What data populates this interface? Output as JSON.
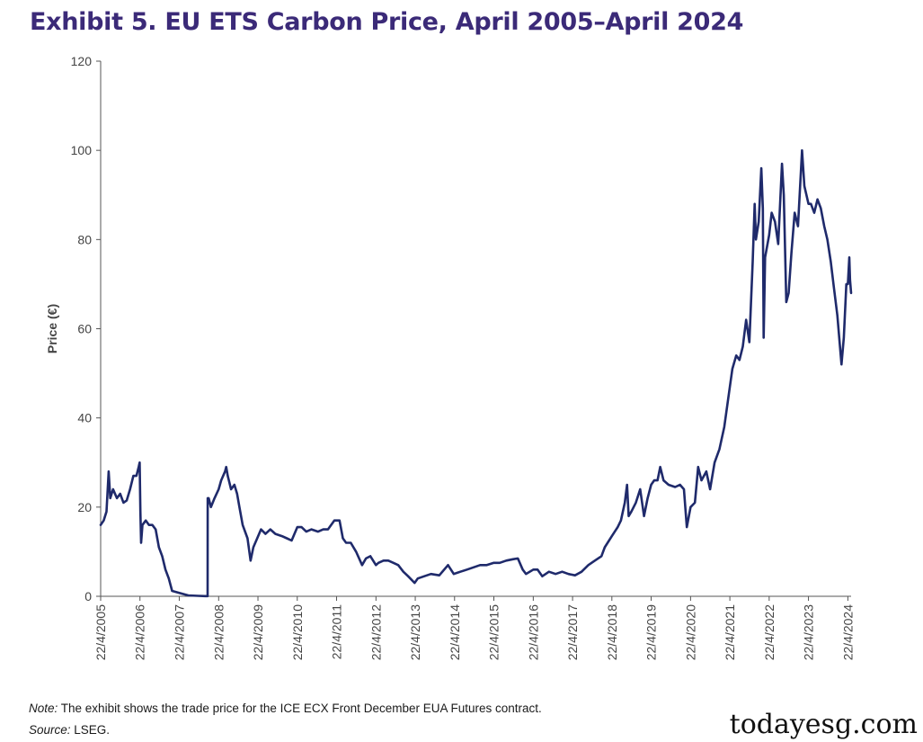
{
  "chart_data": {
    "type": "line",
    "title": "Exhibit 5. EU ETS Carbon Price, April 2005–April 2024",
    "xlabel": "",
    "ylabel": "Price (€)",
    "ylim": [
      0,
      120
    ],
    "yticks": [
      0,
      20,
      40,
      60,
      80,
      100,
      120
    ],
    "xlim": [
      "2005-04-22",
      "2024-05-22"
    ],
    "xticks": [
      "22/4/2005",
      "22/4/2006",
      "22/4/2007",
      "22/4/2008",
      "22/4/2009",
      "22/4/2010",
      "22/4/2011",
      "22/4/2012",
      "22/4/2013",
      "22/4/2014",
      "22/4/2015",
      "22/4/2016",
      "22/4/2017",
      "22/4/2018",
      "22/4/2019",
      "22/4/2020",
      "22/4/2021",
      "22/4/2022",
      "22/4/2023",
      "22/4/2024"
    ],
    "grid": false,
    "line_color": "#1f2a6b",
    "series": [
      {
        "name": "",
        "points": [
          [
            "2005-04-22",
            16
          ],
          [
            "2005-05-20",
            17
          ],
          [
            "2005-06-15",
            19
          ],
          [
            "2005-07-05",
            28
          ],
          [
            "2005-07-20",
            22
          ],
          [
            "2005-08-15",
            24
          ],
          [
            "2005-09-20",
            22
          ],
          [
            "2005-10-20",
            23
          ],
          [
            "2005-11-20",
            21
          ],
          [
            "2005-12-20",
            21.5
          ],
          [
            "2006-01-20",
            24
          ],
          [
            "2006-02-20",
            27
          ],
          [
            "2006-03-20",
            27
          ],
          [
            "2006-04-10",
            29
          ],
          [
            "2006-04-19",
            30
          ],
          [
            "2006-04-26",
            19
          ],
          [
            "2006-05-03",
            12
          ],
          [
            "2006-05-15",
            16
          ],
          [
            "2006-06-15",
            17
          ],
          [
            "2006-07-15",
            16
          ],
          [
            "2006-08-15",
            16
          ],
          [
            "2006-09-15",
            15
          ],
          [
            "2006-10-15",
            11
          ],
          [
            "2006-11-15",
            9
          ],
          [
            "2006-12-15",
            6
          ],
          [
            "2007-01-15",
            4
          ],
          [
            "2007-02-15",
            1.2
          ],
          [
            "2007-04-15",
            0.8
          ],
          [
            "2007-07-15",
            0.2
          ],
          [
            "2007-10-15",
            0.1
          ],
          [
            "2007-12-20",
            0.05
          ],
          [
            "2008-01-10",
            0.05
          ],
          [
            "2008-01-11",
            22
          ],
          [
            "2008-01-20",
            22
          ],
          [
            "2008-02-10",
            20
          ],
          [
            "2008-03-15",
            22
          ],
          [
            "2008-04-22",
            24
          ],
          [
            "2008-05-15",
            26
          ],
          [
            "2008-06-20",
            28
          ],
          [
            "2008-07-01",
            29
          ],
          [
            "2008-07-15",
            27
          ],
          [
            "2008-08-15",
            24
          ],
          [
            "2008-09-15",
            25
          ],
          [
            "2008-10-10",
            23
          ],
          [
            "2008-11-01",
            20
          ],
          [
            "2008-12-01",
            16
          ],
          [
            "2009-01-15",
            13
          ],
          [
            "2009-02-12",
            8
          ],
          [
            "2009-03-10",
            11
          ],
          [
            "2009-04-15",
            13
          ],
          [
            "2009-05-20",
            15
          ],
          [
            "2009-07-01",
            14
          ],
          [
            "2009-08-15",
            15
          ],
          [
            "2009-10-01",
            14
          ],
          [
            "2009-12-01",
            13.5
          ],
          [
            "2010-01-15",
            13
          ],
          [
            "2010-03-01",
            12.5
          ],
          [
            "2010-04-22",
            15.5
          ],
          [
            "2010-06-01",
            15.5
          ],
          [
            "2010-07-15",
            14.5
          ],
          [
            "2010-09-01",
            15
          ],
          [
            "2010-11-01",
            14.5
          ],
          [
            "2010-12-20",
            15
          ],
          [
            "2011-02-01",
            15
          ],
          [
            "2011-04-01",
            17
          ],
          [
            "2011-05-20",
            17
          ],
          [
            "2011-06-20",
            13
          ],
          [
            "2011-07-20",
            12
          ],
          [
            "2011-09-01",
            12
          ],
          [
            "2011-10-20",
            10
          ],
          [
            "2011-12-15",
            7
          ],
          [
            "2012-01-20",
            8.5
          ],
          [
            "2012-03-01",
            9
          ],
          [
            "2012-04-22",
            7
          ],
          [
            "2012-05-15",
            7.5
          ],
          [
            "2012-07-01",
            8
          ],
          [
            "2012-08-15",
            8
          ],
          [
            "2012-10-01",
            7.5
          ],
          [
            "2012-11-15",
            7
          ],
          [
            "2013-01-01",
            5.5
          ],
          [
            "2013-02-15",
            4.5
          ],
          [
            "2013-04-16",
            3
          ],
          [
            "2013-05-15",
            4
          ],
          [
            "2013-07-15",
            4.5
          ],
          [
            "2013-09-15",
            5
          ],
          [
            "2013-12-01",
            4.7
          ],
          [
            "2014-02-20",
            7
          ],
          [
            "2014-04-15",
            5
          ],
          [
            "2014-06-15",
            5.5
          ],
          [
            "2014-08-15",
            6
          ],
          [
            "2014-10-15",
            6.5
          ],
          [
            "2014-12-15",
            7
          ],
          [
            "2015-02-15",
            7
          ],
          [
            "2015-04-22",
            7.5
          ],
          [
            "2015-06-15",
            7.5
          ],
          [
            "2015-08-15",
            8
          ],
          [
            "2015-10-15",
            8.3
          ],
          [
            "2015-12-01",
            8.5
          ],
          [
            "2016-01-15",
            6
          ],
          [
            "2016-02-15",
            5
          ],
          [
            "2016-04-22",
            6
          ],
          [
            "2016-06-01",
            6
          ],
          [
            "2016-07-15",
            4.5
          ],
          [
            "2016-09-15",
            5.5
          ],
          [
            "2016-11-15",
            5
          ],
          [
            "2017-01-15",
            5.5
          ],
          [
            "2017-03-15",
            5
          ],
          [
            "2017-05-15",
            4.7
          ],
          [
            "2017-07-15",
            5.5
          ],
          [
            "2017-09-15",
            7
          ],
          [
            "2017-11-15",
            8
          ],
          [
            "2018-01-15",
            9
          ],
          [
            "2018-02-15",
            11
          ],
          [
            "2018-04-22",
            13.5
          ],
          [
            "2018-06-15",
            15.5
          ],
          [
            "2018-07-15",
            17
          ],
          [
            "2018-08-20",
            21
          ],
          [
            "2018-09-10",
            25
          ],
          [
            "2018-09-25",
            18
          ],
          [
            "2018-10-20",
            19
          ],
          [
            "2018-12-01",
            21
          ],
          [
            "2019-01-10",
            24
          ],
          [
            "2019-02-15",
            18
          ],
          [
            "2019-03-20",
            22
          ],
          [
            "2019-04-22",
            25
          ],
          [
            "2019-05-20",
            26
          ],
          [
            "2019-06-20",
            26
          ],
          [
            "2019-07-15",
            29
          ],
          [
            "2019-08-15",
            26
          ],
          [
            "2019-10-01",
            25
          ],
          [
            "2019-12-01",
            24.5
          ],
          [
            "2020-01-15",
            25
          ],
          [
            "2020-02-20",
            24
          ],
          [
            "2020-03-18",
            15.5
          ],
          [
            "2020-04-22",
            20
          ],
          [
            "2020-06-01",
            21
          ],
          [
            "2020-07-01",
            29
          ],
          [
            "2020-08-01",
            26
          ],
          [
            "2020-09-15",
            28
          ],
          [
            "2020-10-20",
            24
          ],
          [
            "2020-12-01",
            30
          ],
          [
            "2021-01-15",
            33
          ],
          [
            "2021-03-01",
            38
          ],
          [
            "2021-04-22",
            47
          ],
          [
            "2021-05-15",
            51
          ],
          [
            "2021-06-20",
            54
          ],
          [
            "2021-07-20",
            53
          ],
          [
            "2021-08-20",
            56
          ],
          [
            "2021-09-20",
            62
          ],
          [
            "2021-10-20",
            57
          ],
          [
            "2021-11-20",
            75
          ],
          [
            "2021-12-08",
            88
          ],
          [
            "2021-12-20",
            80
          ],
          [
            "2022-01-15",
            84
          ],
          [
            "2022-02-08",
            96
          ],
          [
            "2022-02-22",
            87
          ],
          [
            "2022-03-02",
            58
          ],
          [
            "2022-03-15",
            76
          ],
          [
            "2022-04-22",
            81
          ],
          [
            "2022-05-15",
            86
          ],
          [
            "2022-06-15",
            84
          ],
          [
            "2022-07-15",
            79
          ],
          [
            "2022-08-19",
            97
          ],
          [
            "2022-09-05",
            90
          ],
          [
            "2022-09-28",
            66
          ],
          [
            "2022-10-20",
            68
          ],
          [
            "2022-11-15",
            77
          ],
          [
            "2022-12-15",
            86
          ],
          [
            "2023-01-15",
            83
          ],
          [
            "2023-02-21",
            100
          ],
          [
            "2023-03-15",
            92
          ],
          [
            "2023-04-22",
            88
          ],
          [
            "2023-05-15",
            88
          ],
          [
            "2023-06-15",
            86
          ],
          [
            "2023-07-15",
            89
          ],
          [
            "2023-08-15",
            87
          ],
          [
            "2023-09-15",
            83
          ],
          [
            "2023-10-15",
            80
          ],
          [
            "2023-11-15",
            75
          ],
          [
            "2023-12-15",
            69
          ],
          [
            "2024-01-15",
            63
          ],
          [
            "2024-02-23",
            52
          ],
          [
            "2024-03-15",
            58
          ],
          [
            "2024-04-08",
            70
          ],
          [
            "2024-04-22",
            70
          ],
          [
            "2024-05-05",
            76
          ],
          [
            "2024-05-12",
            71
          ],
          [
            "2024-05-22",
            68
          ]
        ]
      }
    ]
  },
  "footer": {
    "note_label": "Note:",
    "note_text": " The exhibit shows the trade price for the ICE ECX Front December EUA Futures contract.",
    "source_label": "Source:",
    "source_text": " LSEG."
  },
  "watermark": "todayesg.com"
}
